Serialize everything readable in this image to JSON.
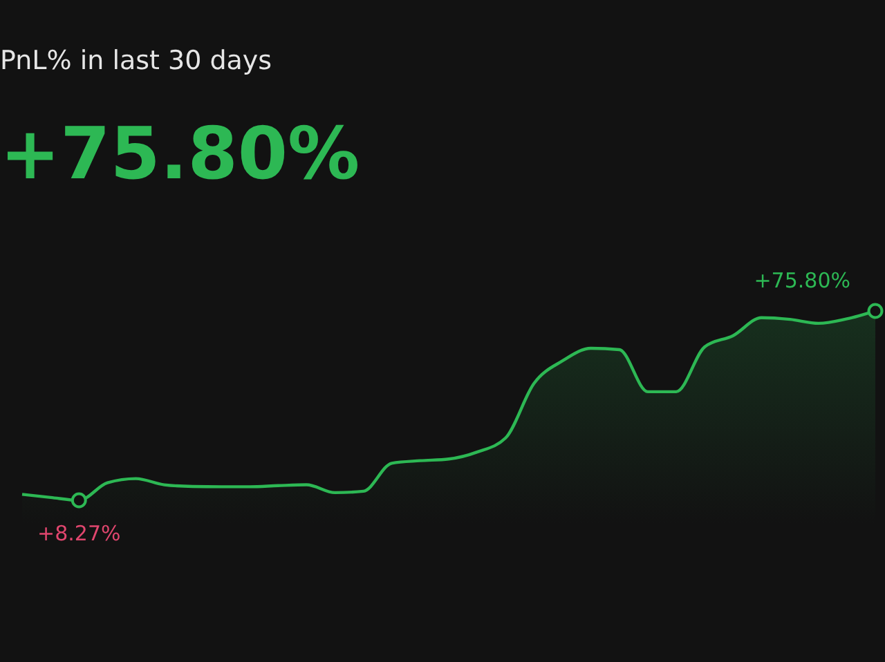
{
  "chart_data": {
    "type": "area",
    "title": "PnL% in last 30 days",
    "subtitle": "+75.80%",
    "categories": [
      null,
      null,
      null,
      null,
      null,
      null,
      null,
      null,
      null,
      null,
      null,
      null,
      null,
      null,
      null,
      null,
      null,
      null,
      null,
      null,
      null,
      null,
      null,
      null,
      null,
      null,
      null,
      null,
      null,
      null,
      null
    ],
    "series": [
      {
        "color": "#2db854",
        "values": [
          10.4,
          9.3,
          8.27,
          14.5,
          16.0,
          13.8,
          13.2,
          13.1,
          13.1,
          13.5,
          13.8,
          11.0,
          11.5,
          21.5,
          22.4,
          23.0,
          25.5,
          30.5,
          50,
          58,
          62.5,
          62,
          47,
          47,
          63,
          67,
          73.4,
          72.8,
          71.4,
          73,
          75.8
        ],
        "value_labels": [
          null,
          null,
          "+8.27%",
          null,
          null,
          null,
          null,
          null,
          null,
          null,
          null,
          null,
          null,
          null,
          null,
          null,
          null,
          null,
          null,
          null,
          null,
          null,
          null,
          null,
          null,
          null,
          null,
          null,
          null,
          null,
          "+75.80%"
        ]
      }
    ],
    "grid": false,
    "tick_labels": false
  }
}
